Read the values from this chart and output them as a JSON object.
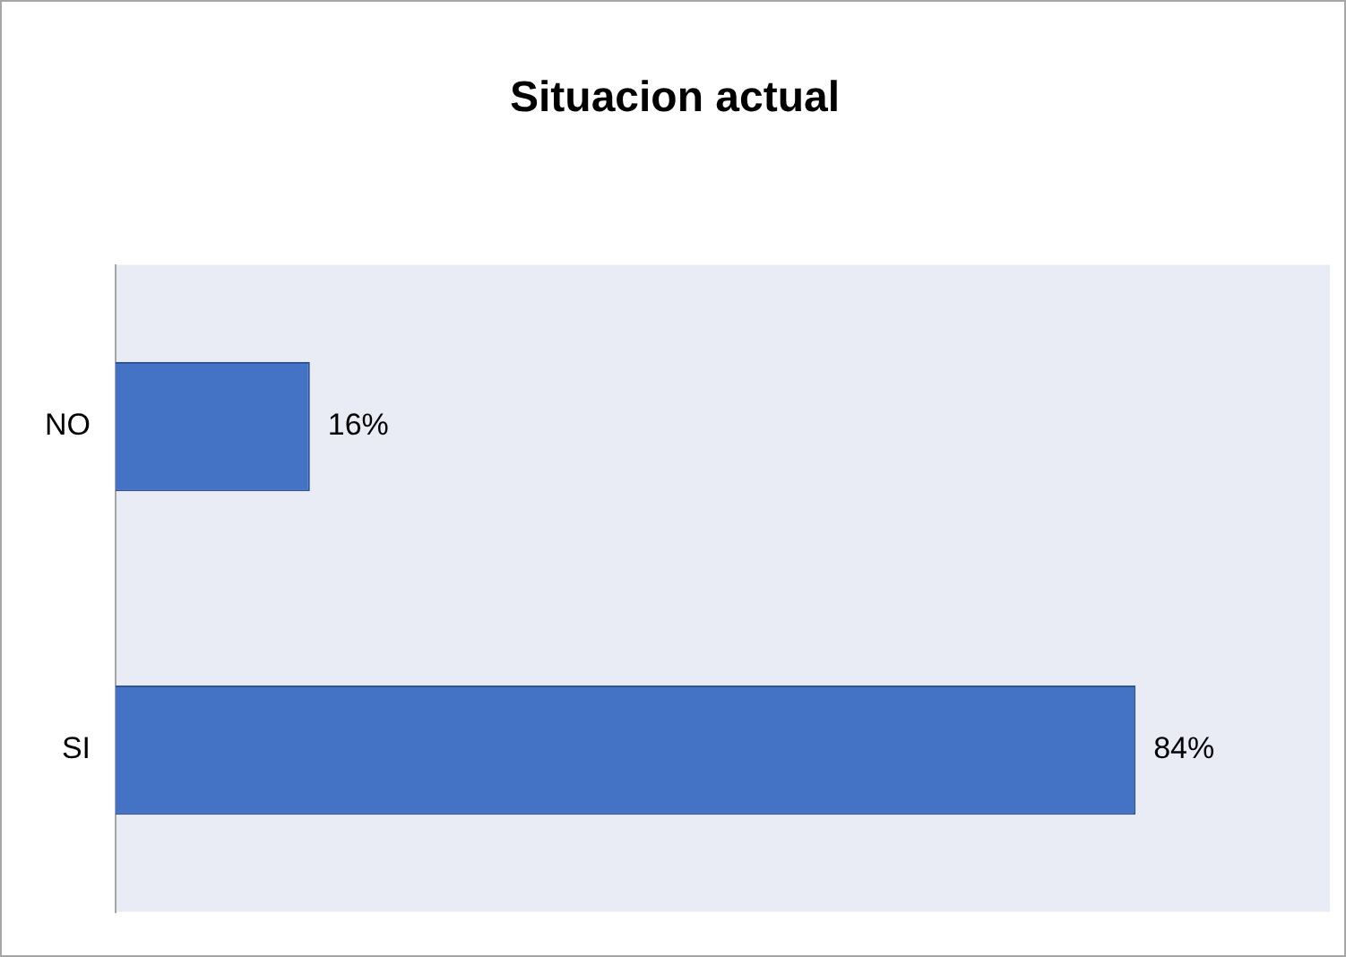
{
  "chart_data": {
    "type": "bar",
    "orientation": "horizontal",
    "title": "Situacion actual",
    "categories": [
      "NO",
      "SI"
    ],
    "values": [
      16,
      84
    ],
    "value_labels": [
      "16%",
      "84%"
    ],
    "color": "#4472c4",
    "xlim": [
      0,
      100
    ],
    "tick_labels": "y",
    "legend": false
  }
}
